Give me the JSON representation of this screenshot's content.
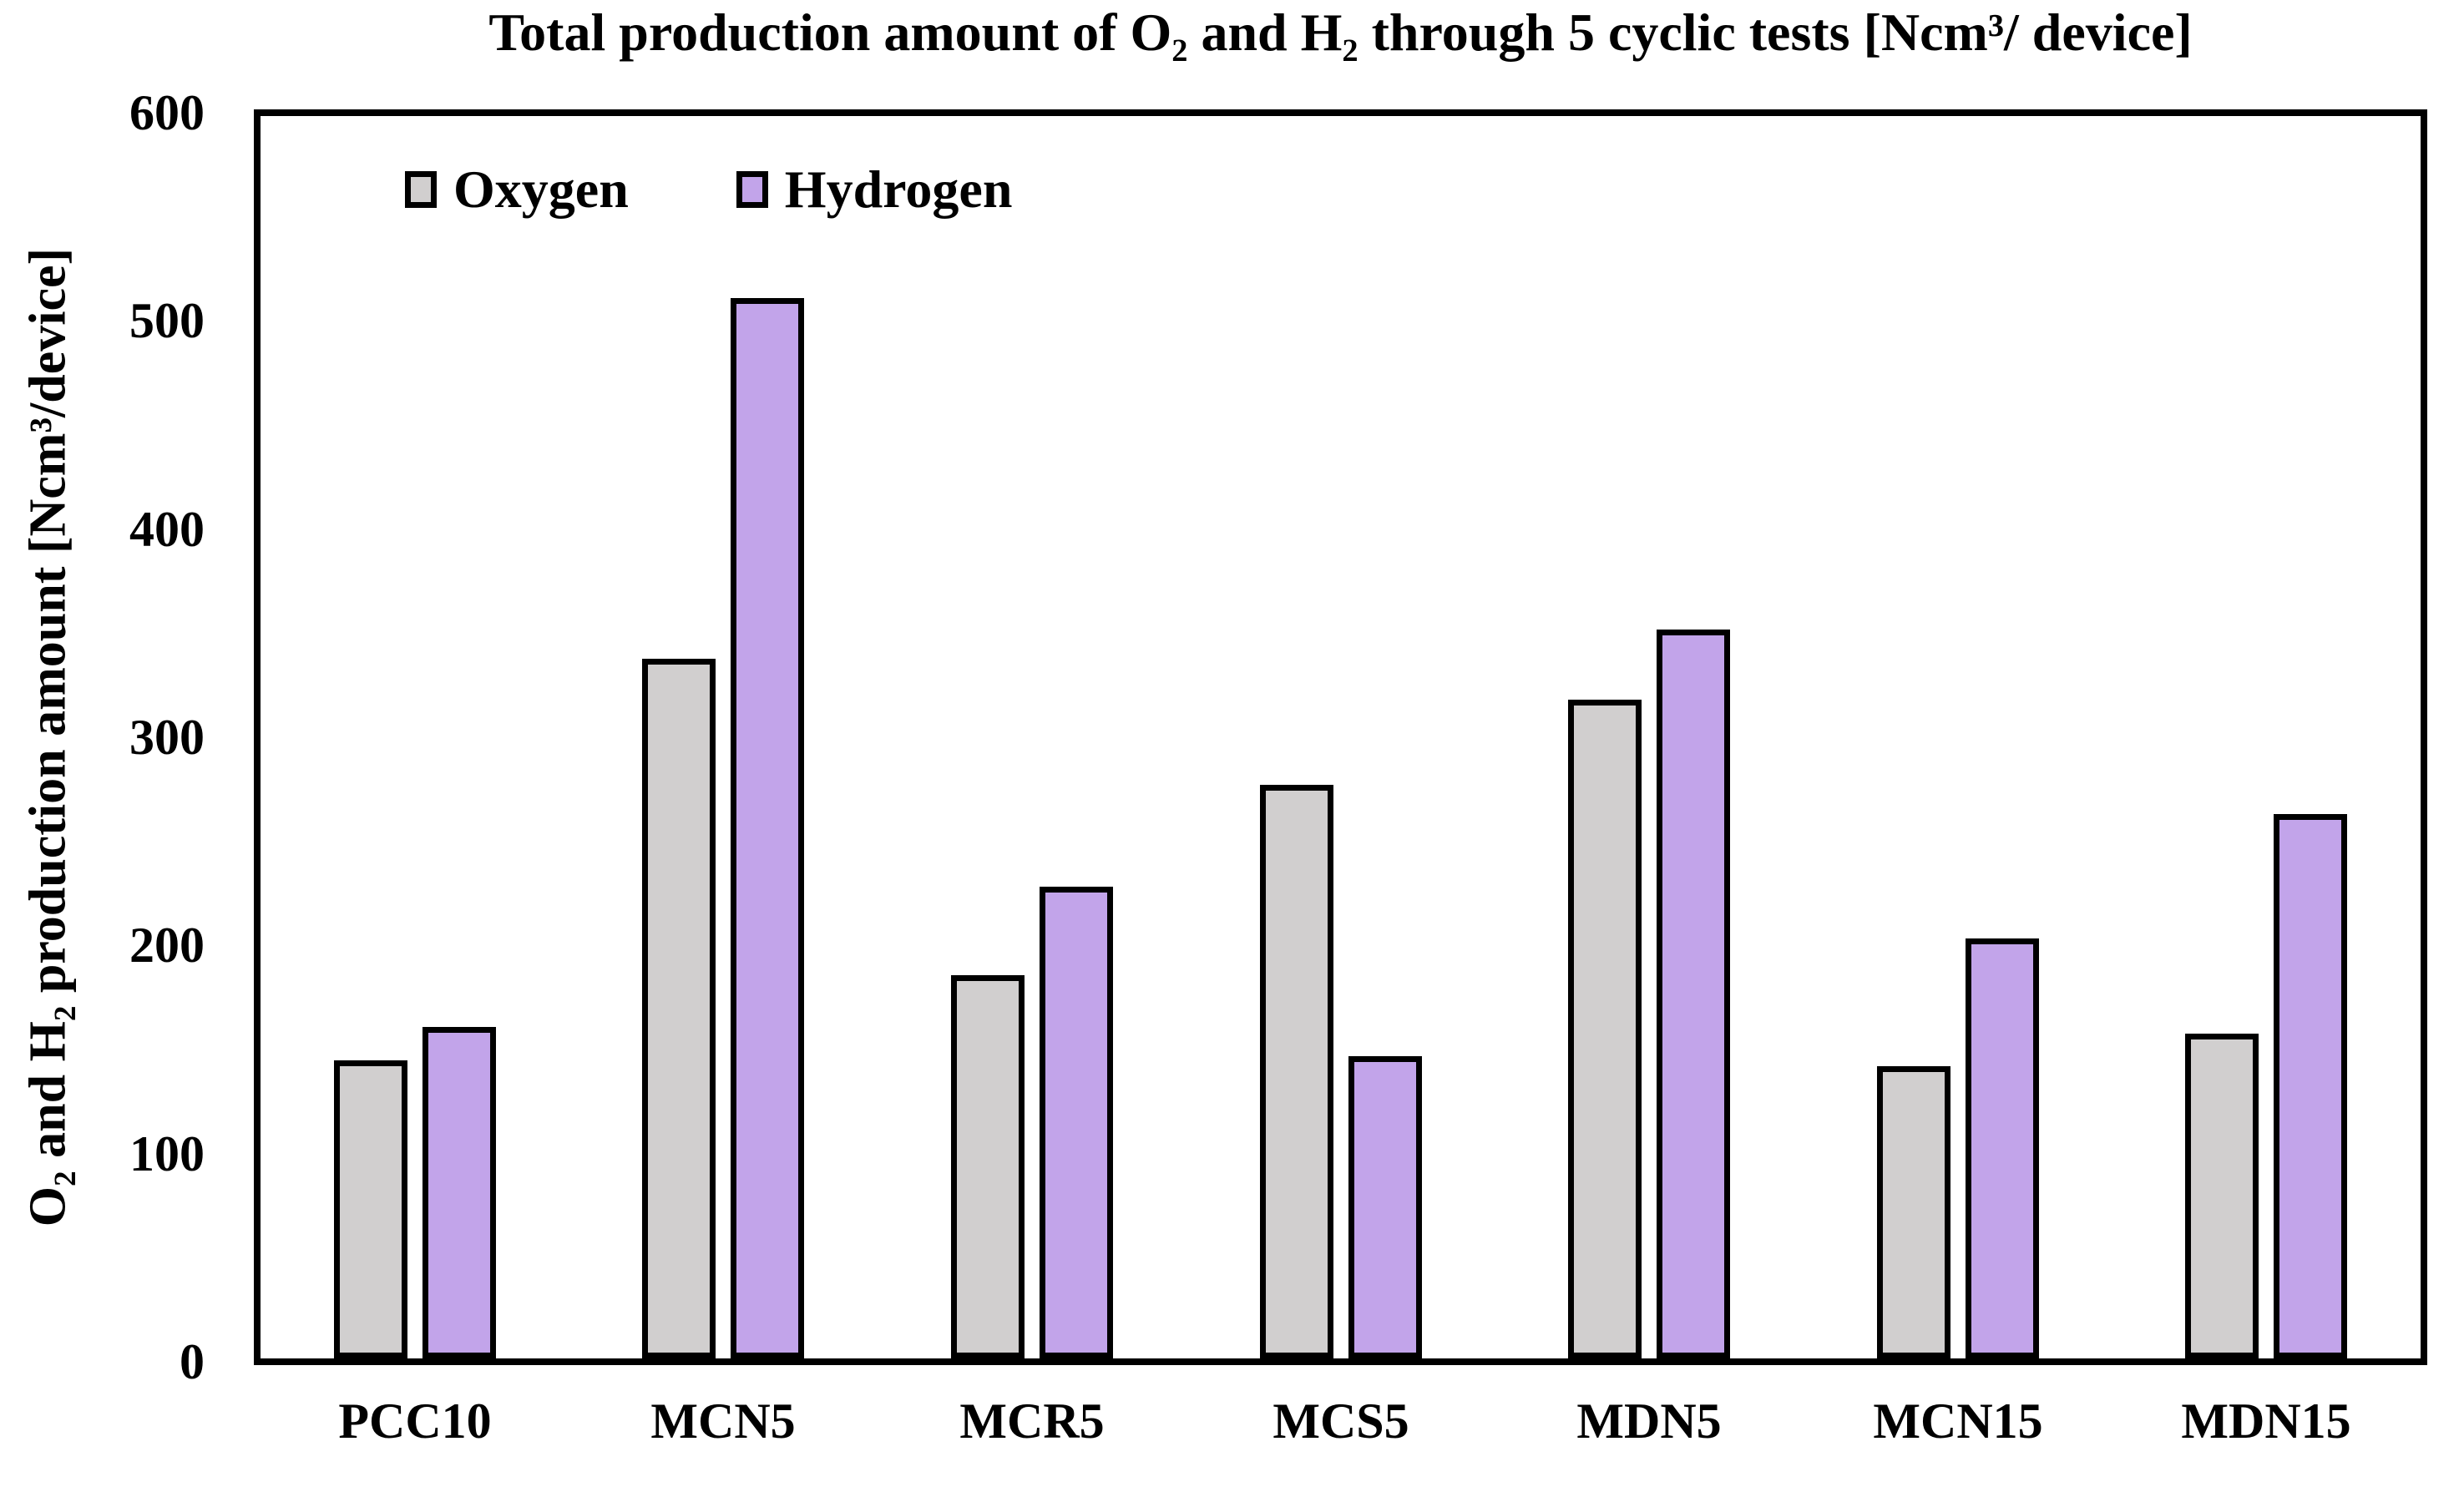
{
  "title": "Total production amount of O₂ and H₂ through 5 cyclic tests  [Ncm³/ device]",
  "chart_data": {
    "type": "bar",
    "title": "Total production amount of O₂ and H₂ through 5 cyclic tests  [Ncm³/ device]",
    "xlabel": "",
    "ylabel": "O₂ and H₂ production amount [Ncm³/device]",
    "ylim": [
      0,
      600
    ],
    "yticks": [
      "0",
      "100",
      "200",
      "300",
      "400",
      "500",
      "600"
    ],
    "ytick_values": [
      0,
      100,
      200,
      300,
      400,
      500,
      600
    ],
    "grid": false,
    "legend_position": "top-left-inside",
    "categories": [
      "PCC10",
      "MCN5",
      "MCR5",
      "MCS5",
      "MDN5",
      "MCN15",
      "MDN15"
    ],
    "series": [
      {
        "name": "Oxygen",
        "color": "#d1cfcf",
        "values": [
          144,
          338,
          185,
          277,
          318,
          141,
          157
        ]
      },
      {
        "name": "Hydrogen",
        "color": "#c2a4ea",
        "values": [
          160,
          512,
          228,
          146,
          352,
          203,
          263
        ]
      }
    ],
    "bar_border_color": "#000000",
    "axis_color": "#000000",
    "background_color": "#ffffff"
  }
}
